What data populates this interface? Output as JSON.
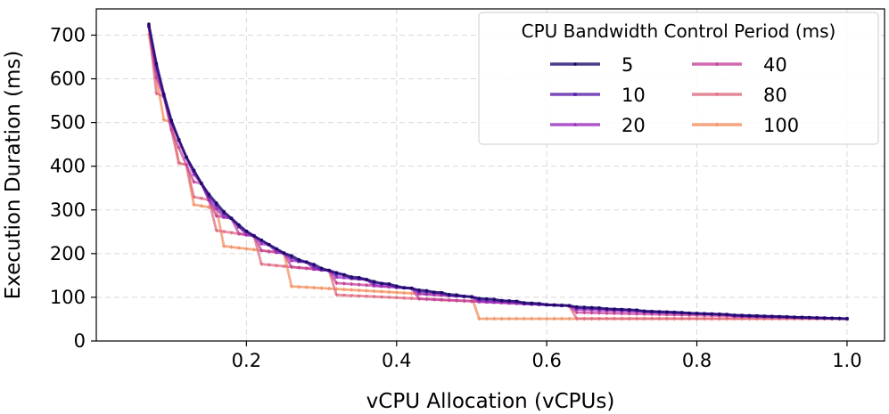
{
  "chart_data": {
    "type": "line",
    "xlabel": "vCPU Allocation (vCPUs)",
    "ylabel": "Execution Duration (ms)",
    "xlim": [
      0.0,
      1.05
    ],
    "ylim": [
      0,
      760
    ],
    "xticks": [
      0.2,
      0.4,
      0.6,
      0.8,
      1.0
    ],
    "xtick_labels": [
      "0.2",
      "0.4",
      "0.6",
      "0.8",
      "1.0"
    ],
    "yticks": [
      0,
      100,
      200,
      300,
      400,
      500,
      600,
      700
    ],
    "ytick_labels": [
      "0",
      "100",
      "200",
      "300",
      "400",
      "500",
      "600",
      "700"
    ],
    "grid": true,
    "legend_title": "CPU Bandwidth Control Period (ms)",
    "legend_position": "top-right",
    "base_duration_ms": 51,
    "x_start": 0.07,
    "x_end": 1.0,
    "x_step": 0.01,
    "series": [
      {
        "name": "5",
        "period": 5,
        "color": "#1e0a6e",
        "marker": "circle"
      },
      {
        "name": "10",
        "period": 10,
        "color": "#5a1ea8",
        "marker": "square"
      },
      {
        "name": "20",
        "period": 20,
        "color": "#9a2dbd",
        "marker": "triangle"
      },
      {
        "name": "40",
        "period": 40,
        "color": "#c4449a",
        "marker": "diamond"
      },
      {
        "name": "80",
        "period": 80,
        "color": "#df6b82",
        "marker": "triangle-down"
      },
      {
        "name": "100",
        "period": 100,
        "color": "#f29060",
        "marker": "plus"
      }
    ]
  }
}
